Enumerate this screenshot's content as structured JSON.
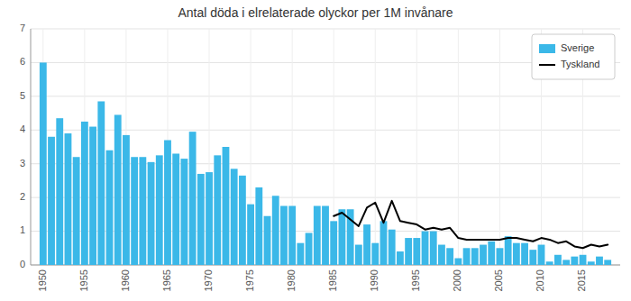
{
  "chart_data": {
    "type": "bar",
    "title": "Antal döda i elrelaterade olyckor per 1M invånare",
    "x": [
      1950,
      1951,
      1952,
      1953,
      1954,
      1955,
      1956,
      1957,
      1958,
      1959,
      1960,
      1961,
      1962,
      1963,
      1964,
      1965,
      1966,
      1967,
      1968,
      1969,
      1970,
      1971,
      1972,
      1973,
      1974,
      1975,
      1976,
      1977,
      1978,
      1979,
      1980,
      1981,
      1982,
      1983,
      1984,
      1985,
      1986,
      1987,
      1988,
      1989,
      1990,
      1991,
      1992,
      1993,
      1994,
      1995,
      1996,
      1997,
      1998,
      1999,
      2000,
      2001,
      2002,
      2003,
      2004,
      2005,
      2006,
      2007,
      2008,
      2009,
      2010,
      2011,
      2012,
      2013,
      2014,
      2015,
      2016,
      2017,
      2018
    ],
    "series": [
      {
        "name": "Sverige",
        "type": "bar",
        "color": "#3BB8E8",
        "values": [
          6.0,
          3.8,
          4.35,
          3.9,
          3.2,
          4.25,
          4.1,
          4.85,
          3.4,
          4.45,
          3.85,
          3.2,
          3.2,
          3.05,
          3.25,
          3.7,
          3.3,
          3.15,
          3.95,
          2.7,
          2.75,
          3.25,
          3.5,
          2.85,
          2.65,
          1.8,
          2.3,
          1.45,
          2.05,
          1.75,
          1.75,
          0.65,
          0.95,
          1.75,
          1.75,
          1.3,
          1.65,
          1.65,
          0.6,
          1.2,
          0.65,
          1.3,
          1.05,
          0.4,
          0.8,
          0.8,
          1.0,
          1.0,
          0.6,
          0.5,
          0.2,
          0.5,
          0.5,
          0.6,
          0.7,
          0.5,
          0.85,
          0.65,
          0.65,
          0.45,
          0.6,
          0.1,
          0.3,
          0.15,
          0.25,
          0.3,
          0.1,
          0.25,
          0.15
        ]
      },
      {
        "name": "Tyskland",
        "type": "line",
        "color": "#000000",
        "values": [
          null,
          null,
          null,
          null,
          null,
          null,
          null,
          null,
          null,
          null,
          null,
          null,
          null,
          null,
          null,
          null,
          null,
          null,
          null,
          null,
          null,
          null,
          null,
          null,
          null,
          null,
          null,
          null,
          null,
          null,
          null,
          null,
          null,
          null,
          null,
          1.45,
          1.55,
          1.35,
          1.15,
          1.7,
          1.85,
          1.25,
          1.9,
          1.3,
          1.25,
          1.2,
          1.05,
          1.1,
          1.05,
          1.1,
          0.8,
          0.75,
          0.75,
          0.75,
          0.75,
          0.75,
          0.8,
          0.8,
          0.75,
          0.7,
          0.8,
          0.75,
          0.65,
          0.7,
          0.55,
          0.5,
          0.6,
          0.55,
          0.6
        ]
      }
    ],
    "xlim": [
      1948.5,
      2019.5
    ],
    "xticks": [
      1950,
      1955,
      1960,
      1965,
      1970,
      1975,
      1980,
      1985,
      1990,
      1995,
      2000,
      2005,
      2010,
      2015
    ],
    "ylim": [
      0,
      7
    ],
    "yticks": [
      0,
      1,
      2,
      3,
      4,
      5,
      6,
      7
    ],
    "grid": true,
    "legend": "upper right"
  }
}
